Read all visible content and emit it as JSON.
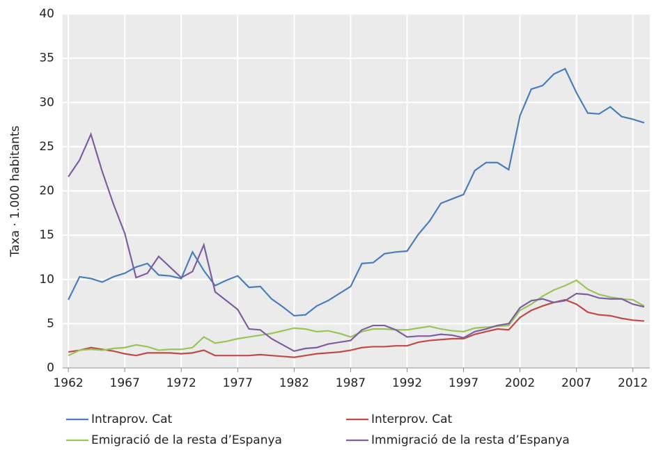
{
  "chart_data": {
    "type": "line",
    "y_label": "Taxa · 1.000 habitants",
    "x": [
      1962,
      1963,
      1964,
      1965,
      1966,
      1967,
      1968,
      1969,
      1970,
      1971,
      1972,
      1973,
      1974,
      1975,
      1976,
      1977,
      1978,
      1979,
      1980,
      1981,
      1982,
      1983,
      1984,
      1985,
      1986,
      1987,
      1988,
      1989,
      1990,
      1991,
      1992,
      1993,
      1994,
      1995,
      1996,
      1997,
      1998,
      1999,
      2000,
      2001,
      2002,
      2003,
      2004,
      2005,
      2006,
      2007,
      2008,
      2009,
      2010,
      2011,
      2012,
      2013
    ],
    "series": [
      {
        "name": "Intraprov. Cat",
        "color": "#4a7ebb",
        "values": [
          7.7,
          10.3,
          10.1,
          9.7,
          10.3,
          10.7,
          11.4,
          11.8,
          10.5,
          10.4,
          10.1,
          13.1,
          11.0,
          9.3,
          9.9,
          10.4,
          9.1,
          9.2,
          7.8,
          6.9,
          5.9,
          6.0,
          7.0,
          7.6,
          8.4,
          9.2,
          11.8,
          11.9,
          12.9,
          13.1,
          13.2,
          15.1,
          16.6,
          18.6,
          19.1,
          19.6,
          22.3,
          23.2,
          23.2,
          22.4,
          28.5,
          31.5,
          31.9,
          33.2,
          33.8,
          31.1,
          28.8,
          28.7,
          29.5,
          28.4,
          28.1,
          27.7
        ]
      },
      {
        "name": "Interprov. Cat",
        "color": "#be4b48",
        "values": [
          1.8,
          2.0,
          2.3,
          2.1,
          1.9,
          1.6,
          1.4,
          1.7,
          1.7,
          1.7,
          1.6,
          1.7,
          2.0,
          1.4,
          1.4,
          1.4,
          1.4,
          1.5,
          1.4,
          1.3,
          1.2,
          1.4,
          1.6,
          1.7,
          1.8,
          2.0,
          2.3,
          2.4,
          2.4,
          2.5,
          2.5,
          2.9,
          3.1,
          3.2,
          3.3,
          3.3,
          3.8,
          4.1,
          4.4,
          4.3,
          5.7,
          6.5,
          7.0,
          7.4,
          7.7,
          7.2,
          6.3,
          6.0,
          5.9,
          5.6,
          5.4,
          5.3
        ]
      },
      {
        "name": "Emigració de la resta d’Espanya",
        "color": "#98c55a",
        "values": [
          1.4,
          2.0,
          2.1,
          2.0,
          2.2,
          2.3,
          2.6,
          2.4,
          2.0,
          2.1,
          2.1,
          2.3,
          3.5,
          2.8,
          3.0,
          3.3,
          3.5,
          3.7,
          3.9,
          4.2,
          4.5,
          4.4,
          4.1,
          4.2,
          3.9,
          3.5,
          4.1,
          4.4,
          4.4,
          4.3,
          4.3,
          4.5,
          4.7,
          4.4,
          4.2,
          4.1,
          4.5,
          4.6,
          4.7,
          4.8,
          6.5,
          7.2,
          8.1,
          8.8,
          9.3,
          9.9,
          8.9,
          8.3,
          8.0,
          7.8,
          7.7,
          7.0
        ]
      },
      {
        "name": "Immigració de la resta d’Espanya",
        "color": "#7d5fa0",
        "values": [
          21.6,
          23.5,
          26.4,
          22.2,
          18.5,
          15.2,
          10.2,
          10.7,
          12.6,
          11.4,
          10.2,
          10.9,
          13.9,
          8.6,
          7.6,
          6.6,
          4.4,
          4.3,
          3.3,
          2.6,
          1.9,
          2.2,
          2.3,
          2.7,
          2.9,
          3.1,
          4.3,
          4.8,
          4.8,
          4.3,
          3.5,
          3.6,
          3.6,
          3.8,
          3.7,
          3.4,
          4.1,
          4.4,
          4.8,
          5.0,
          6.8,
          7.6,
          7.8,
          7.4,
          7.6,
          8.4,
          8.3,
          7.9,
          7.8,
          7.8,
          7.2,
          6.9
        ]
      }
    ],
    "xlim": [
      1961.5,
      2013.5
    ],
    "xticks": [
      1962,
      1967,
      1972,
      1977,
      1982,
      1987,
      1992,
      1997,
      2002,
      2007,
      2012
    ],
    "ylim": [
      0,
      40
    ],
    "yticks": [
      0,
      5,
      10,
      15,
      20,
      25,
      30,
      35,
      40
    ],
    "grid": true,
    "legend": "bottom"
  }
}
